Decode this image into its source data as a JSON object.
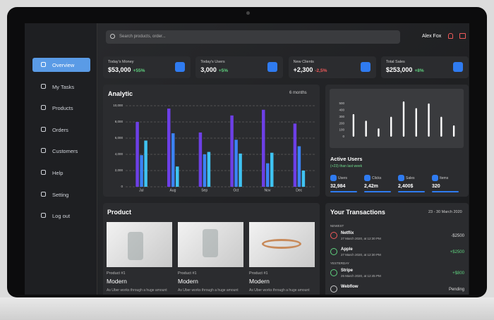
{
  "search_placeholder": "Search products, order...",
  "user": "Alex Fox",
  "menu": [
    "Overview",
    "My Tasks",
    "Products",
    "Orders",
    "Customers",
    "Help",
    "Setting",
    "Log out"
  ],
  "stats": [
    {
      "label": "Today's Money",
      "value": "$53,000",
      "change": "+55%"
    },
    {
      "label": "Today's Users",
      "value": "3,000",
      "change": "+5%"
    },
    {
      "label": "New Clients",
      "value": "+2,300",
      "change": "-2,5%"
    },
    {
      "label": "Total Sales",
      "value": "$253,000",
      "change": "+8%"
    }
  ],
  "chart_data": [
    {
      "type": "bar",
      "title": "Analytic",
      "filter": "6 months",
      "categories": [
        "Jul",
        "Aug",
        "Sep",
        "Oct",
        "Nov",
        "Dec"
      ],
      "series": [
        {
          "color": "#6d3fe6",
          "values": [
            8000,
            9650,
            6700,
            8800,
            9500,
            7800
          ]
        },
        {
          "color": "#3b82f6",
          "values": [
            3900,
            6600,
            4000,
            5800,
            2900,
            5000
          ]
        },
        {
          "color": "#3fc3f2",
          "values": [
            5700,
            2500,
            4300,
            4100,
            4200,
            2000
          ]
        }
      ],
      "ylim": [
        0,
        10000
      ],
      "yticks": [
        0,
        {
          "value": 2000,
          "label": "2,000"
        },
        {
          "value": 4000,
          "label": "4,000"
        },
        {
          "value": 6000,
          "label": "6,000"
        },
        {
          "value": 8000,
          "label": "8,000"
        },
        {
          "value": 10000,
          "label": "10,000"
        }
      ],
      "grid": true
    },
    {
      "type": "bar",
      "values": [
        340,
        240,
        125,
        300,
        530,
        430,
        500,
        300,
        170
      ],
      "color": "#ffffff",
      "ylim": [
        0,
        550
      ],
      "yticks": [
        0,
        100,
        200,
        300,
        400,
        500
      ]
    }
  ],
  "active_users": {
    "title": "Active Users",
    "subtitle": "(+23) than last week",
    "items": [
      {
        "label": "Users",
        "value": "32,984"
      },
      {
        "label": "Clicks",
        "value": "2,42m"
      },
      {
        "label": "Sales",
        "value": "2,400$"
      },
      {
        "label": "Items",
        "value": "320"
      }
    ]
  },
  "product": {
    "title": "Product",
    "cards": [
      {
        "tag": "Product #1",
        "name": "Modern",
        "text": "As Uber works through a huge amount"
      },
      {
        "tag": "Product #1",
        "name": "Modern",
        "text": "As Uber works through a huge amount"
      },
      {
        "tag": "Product #1",
        "name": "Modern",
        "text": "As Uber works through a huge amount"
      }
    ]
  },
  "transactions": {
    "title": "Your Transactions",
    "range": "23 - 30 March 2020",
    "groups": [
      {
        "label": "NEWEST",
        "items": [
          {
            "name": "Netflix",
            "date": "27 March 2020, at 12:30 PM",
            "amount": "-$2500"
          },
          {
            "name": "Apple",
            "date": "27 March 2020, at 12:30 PM",
            "amount": "+$2500"
          }
        ]
      },
      {
        "label": "YESTERDAY",
        "items": [
          {
            "name": "Stripe",
            "date": "26 March 2020, at 12:45 PM",
            "amount": "+$800"
          },
          {
            "name": "Webflow",
            "date": "",
            "amount": "Pending"
          }
        ]
      }
    ]
  }
}
